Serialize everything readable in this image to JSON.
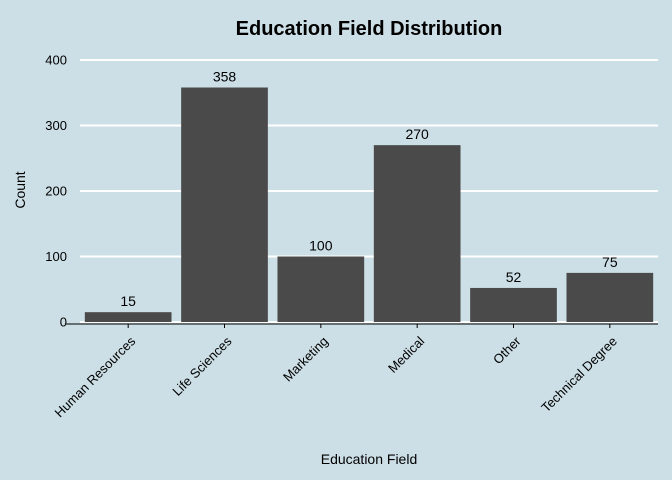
{
  "chart_data": {
    "type": "bar",
    "title": "Education Field Distribution",
    "xlabel": "Education Field",
    "ylabel": "Count",
    "categories": [
      "Human Resources",
      "Life Sciences",
      "Marketing",
      "Medical",
      "Other",
      "Technical Degree"
    ],
    "values": [
      15,
      358,
      100,
      270,
      52,
      75
    ],
    "ylim": [
      0,
      400
    ],
    "yticks": [
      0,
      100,
      200,
      300,
      400
    ],
    "grid": "horizontal",
    "bar_color": "#4a4a4a",
    "background_color": "#cddfe6",
    "grid_color": "#ffffff"
  }
}
